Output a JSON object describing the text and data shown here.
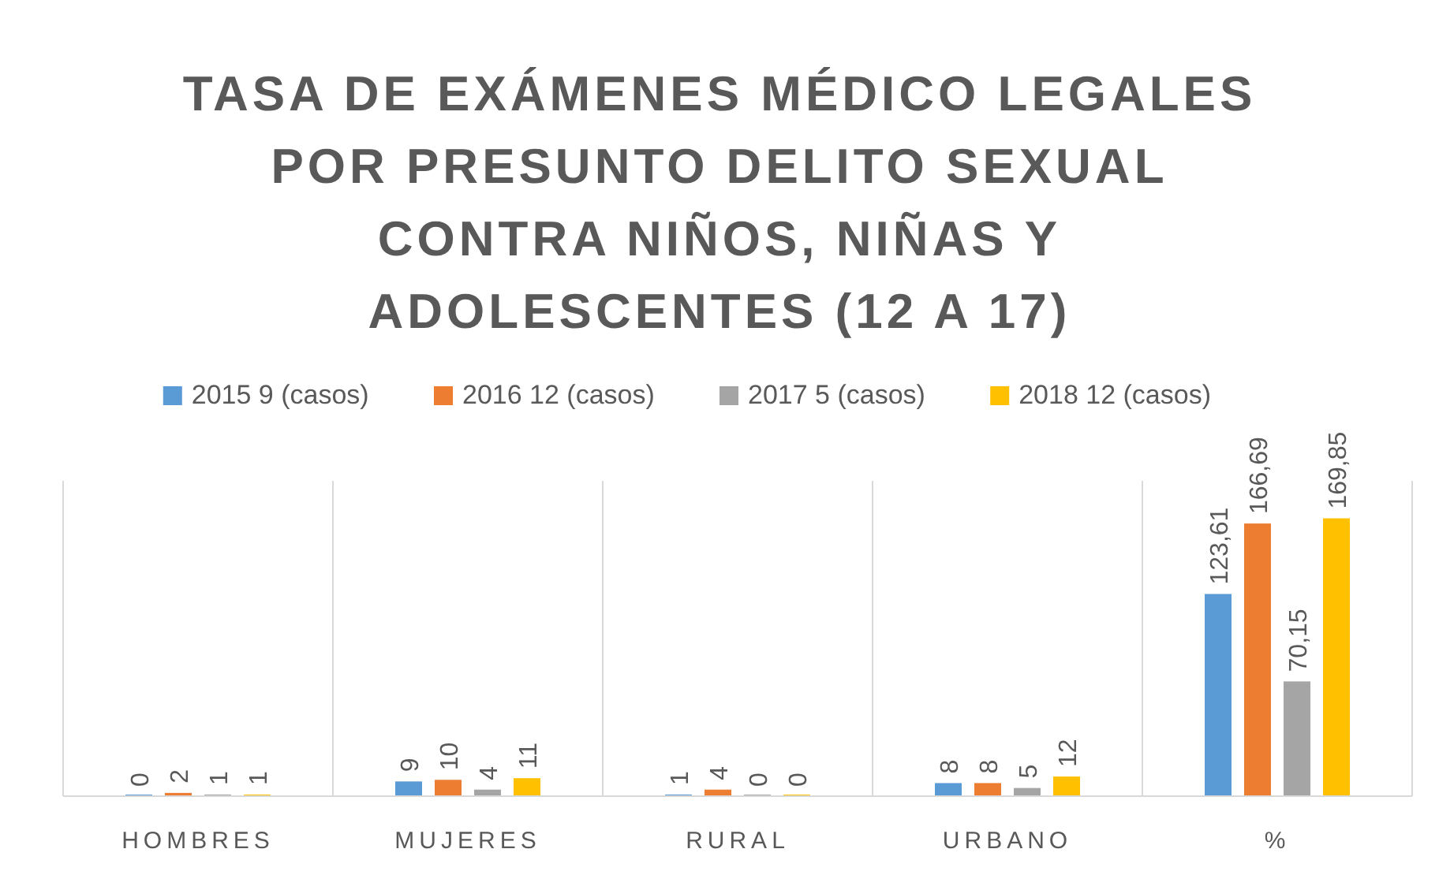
{
  "chart_data": {
    "type": "bar",
    "title": "TASA DE EXÁMENES MÉDICO LEGALES POR PRESUNTO DELITO SEXUAL CONTRA NIÑOS, NIÑAS Y ADOLESCENTES (12 A 17)",
    "categories": [
      "HOMBRES",
      "MUJERES",
      "RURAL",
      "URBANO",
      "%"
    ],
    "series": [
      {
        "name": "2015 9 (casos)",
        "color": "#5b9bd5",
        "values": [
          0,
          9,
          1,
          8,
          123.61
        ],
        "value_labels": [
          "0",
          "9",
          "1",
          "8",
          "123,61"
        ]
      },
      {
        "name": "2016 12 (casos)",
        "color": "#ed7d31",
        "values": [
          2,
          10,
          4,
          8,
          166.69
        ],
        "value_labels": [
          "2",
          "10",
          "4",
          "8",
          "166,69"
        ]
      },
      {
        "name": "2017 5 (casos)",
        "color": "#a5a5a5",
        "values": [
          1,
          4,
          0,
          5,
          70.15
        ],
        "value_labels": [
          "1",
          "4",
          "0",
          "5",
          "70,15"
        ]
      },
      {
        "name": "2018 12 (casos)",
        "color": "#ffc000",
        "values": [
          1,
          11,
          0,
          12,
          169.85
        ],
        "value_labels": [
          "1",
          "11",
          "0",
          "12",
          "169,85"
        ]
      }
    ],
    "grid": "x",
    "legend": "top"
  }
}
